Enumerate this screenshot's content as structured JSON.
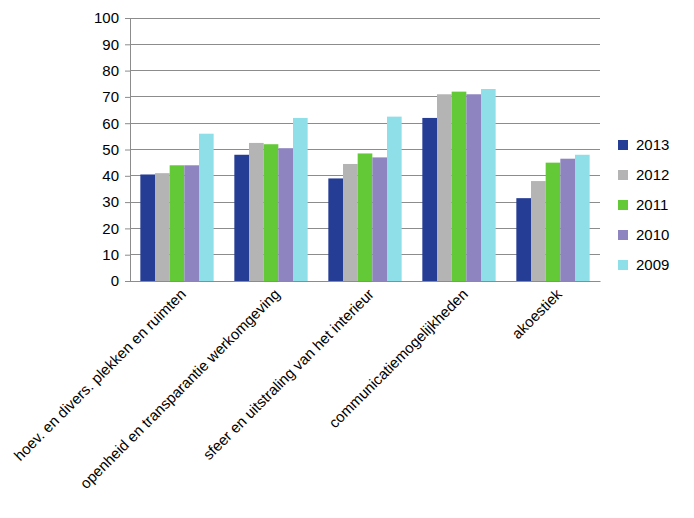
{
  "chart_data": {
    "type": "bar",
    "categories": [
      "hoev. en divers. plekken en ruimten",
      "openheid en transparantie werkomgeving",
      "sfeer en uitstraling van het interieur",
      "communicatiemogelijkheden",
      "akoestiek"
    ],
    "series": [
      {
        "name": "2013",
        "color": "#263d96",
        "values": [
          40.5,
          48,
          39,
          62,
          31.5
        ]
      },
      {
        "name": "2012",
        "color": "#b4b4b4",
        "values": [
          41,
          52.5,
          44.5,
          71,
          38
        ]
      },
      {
        "name": "2011",
        "color": "#63c936",
        "values": [
          44,
          52,
          48.5,
          72,
          45
        ]
      },
      {
        "name": "2010",
        "color": "#8e85c0",
        "values": [
          44,
          50.5,
          47,
          71,
          46.5
        ]
      },
      {
        "name": "2009",
        "color": "#8fdfe8",
        "values": [
          56,
          62,
          62.5,
          73,
          48
        ]
      }
    ],
    "ylim": [
      0,
      100
    ],
    "yticks": [
      0,
      10,
      20,
      30,
      40,
      50,
      60,
      70,
      80,
      90,
      100
    ],
    "grid": true,
    "legend": "right"
  }
}
